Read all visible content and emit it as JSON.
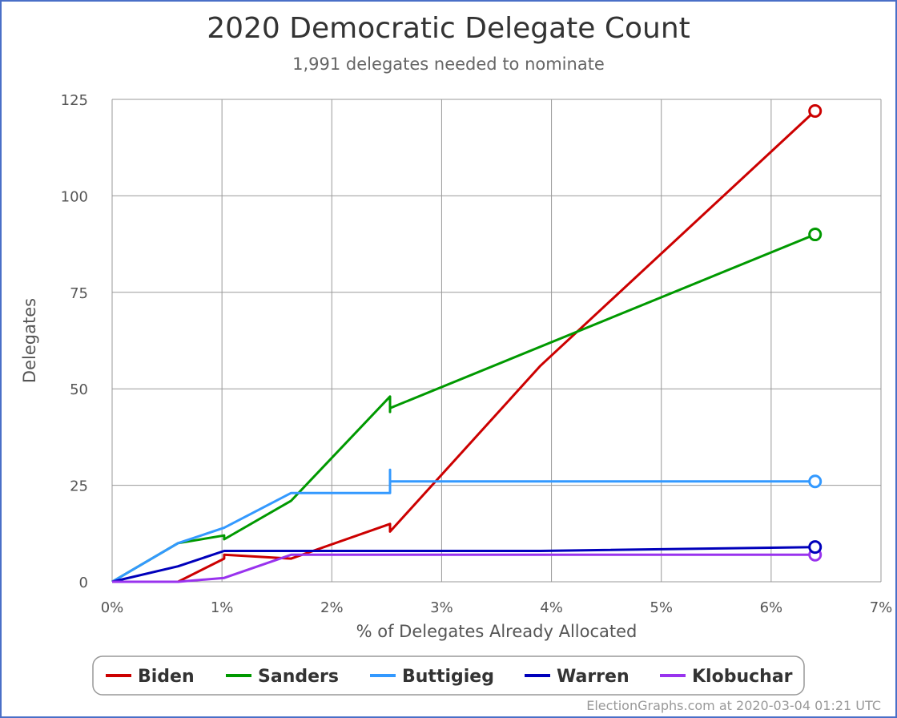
{
  "credits": "ElectionGraphs.com at 2020-03-04 01:21 UTC",
  "chart_data": {
    "type": "line",
    "title": "2020 Democratic Delegate Count",
    "subtitle": "1,991 delegates needed to nominate",
    "xlabel": "% of Delegates Already Allocated",
    "ylabel": "Delegates",
    "xlim": [
      0,
      7
    ],
    "ylim": [
      0,
      125
    ],
    "x_ticks": [
      {
        "value": 0,
        "label": "0%"
      },
      {
        "value": 1,
        "label": "1%"
      },
      {
        "value": 2,
        "label": "2%"
      },
      {
        "value": 3,
        "label": "3%"
      },
      {
        "value": 4,
        "label": "4%"
      },
      {
        "value": 5,
        "label": "5%"
      },
      {
        "value": 6,
        "label": "6%"
      },
      {
        "value": 7,
        "label": "7%"
      }
    ],
    "y_ticks": [
      {
        "value": 0,
        "label": "0"
      },
      {
        "value": 25,
        "label": "25"
      },
      {
        "value": 50,
        "label": "50"
      },
      {
        "value": 75,
        "label": "75"
      },
      {
        "value": 100,
        "label": "100"
      },
      {
        "value": 125,
        "label": "125"
      }
    ],
    "grid": true,
    "legend_position": "bottom",
    "series": [
      {
        "name": "Biden",
        "color": "#cc0000",
        "points": [
          [
            0,
            0
          ],
          [
            0.6,
            0
          ],
          [
            1.02,
            6
          ],
          [
            1.02,
            7
          ],
          [
            1.63,
            6
          ],
          [
            2.53,
            15
          ],
          [
            2.53,
            13
          ],
          [
            3.9,
            56
          ],
          [
            6.4,
            122
          ]
        ]
      },
      {
        "name": "Sanders",
        "color": "#009900",
        "points": [
          [
            0,
            0
          ],
          [
            0.6,
            10
          ],
          [
            1.02,
            12
          ],
          [
            1.02,
            11
          ],
          [
            1.63,
            21
          ],
          [
            2.53,
            48
          ],
          [
            2.53,
            44
          ],
          [
            2.53,
            45
          ],
          [
            6.4,
            90
          ]
        ]
      },
      {
        "name": "Buttigieg",
        "color": "#3399ff",
        "points": [
          [
            0,
            0
          ],
          [
            0.6,
            10
          ],
          [
            1.02,
            14
          ],
          [
            1.63,
            23
          ],
          [
            2.53,
            23
          ],
          [
            2.53,
            29
          ],
          [
            2.53,
            26
          ],
          [
            6.4,
            26
          ]
        ]
      },
      {
        "name": "Warren",
        "color": "#0000bb",
        "points": [
          [
            0,
            0
          ],
          [
            0.6,
            4
          ],
          [
            1.02,
            8
          ],
          [
            1.63,
            8
          ],
          [
            2.53,
            8
          ],
          [
            3.9,
            8
          ],
          [
            6.4,
            9
          ]
        ]
      },
      {
        "name": "Klobuchar",
        "color": "#9933ee",
        "points": [
          [
            0,
            0
          ],
          [
            0.6,
            0
          ],
          [
            1.02,
            1
          ],
          [
            1.63,
            7
          ],
          [
            2.53,
            7
          ],
          [
            3.9,
            7
          ],
          [
            6.4,
            7
          ]
        ]
      }
    ]
  }
}
